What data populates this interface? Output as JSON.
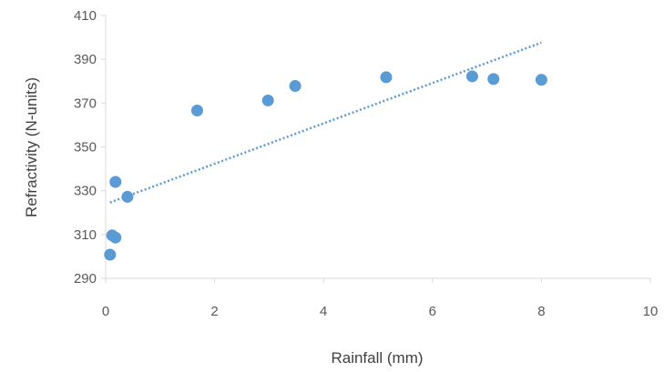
{
  "chart_data": {
    "type": "scatter",
    "xlabel": "Rainfall (mm)",
    "ylabel": "Refractivity (N-units)",
    "xlim": [
      0,
      10
    ],
    "ylim": [
      290,
      410
    ],
    "x_ticks": [
      0,
      2,
      4,
      6,
      8,
      10
    ],
    "y_ticks": [
      290,
      310,
      330,
      350,
      370,
      390,
      410
    ],
    "x_tick_labels": [
      "0",
      "2",
      "4",
      "6",
      "8",
      "10"
    ],
    "y_tick_labels": [
      "290",
      "310",
      "330",
      "350",
      "370",
      "390",
      "410"
    ],
    "grid": false,
    "legend": "none",
    "series": [
      {
        "x": [
          0.08,
          0.12,
          0.18,
          0.18,
          0.4,
          1.68,
          2.98,
          3.48,
          5.15,
          6.73,
          7.12,
          8.0
        ],
        "y": [
          300.8,
          309.6,
          308.6,
          334.0,
          327.2,
          366.6,
          371.2,
          377.8,
          381.8,
          382.2,
          381.0,
          380.6
        ],
        "color": "#5B9BD5"
      }
    ],
    "trendline": {
      "type": "linear",
      "x_range": [
        0.08,
        8.0
      ],
      "y_range": [
        324.6,
        397.6
      ],
      "style": "dotted",
      "color": "#5B9BD5"
    },
    "axis_color": "#D9D9D9"
  }
}
